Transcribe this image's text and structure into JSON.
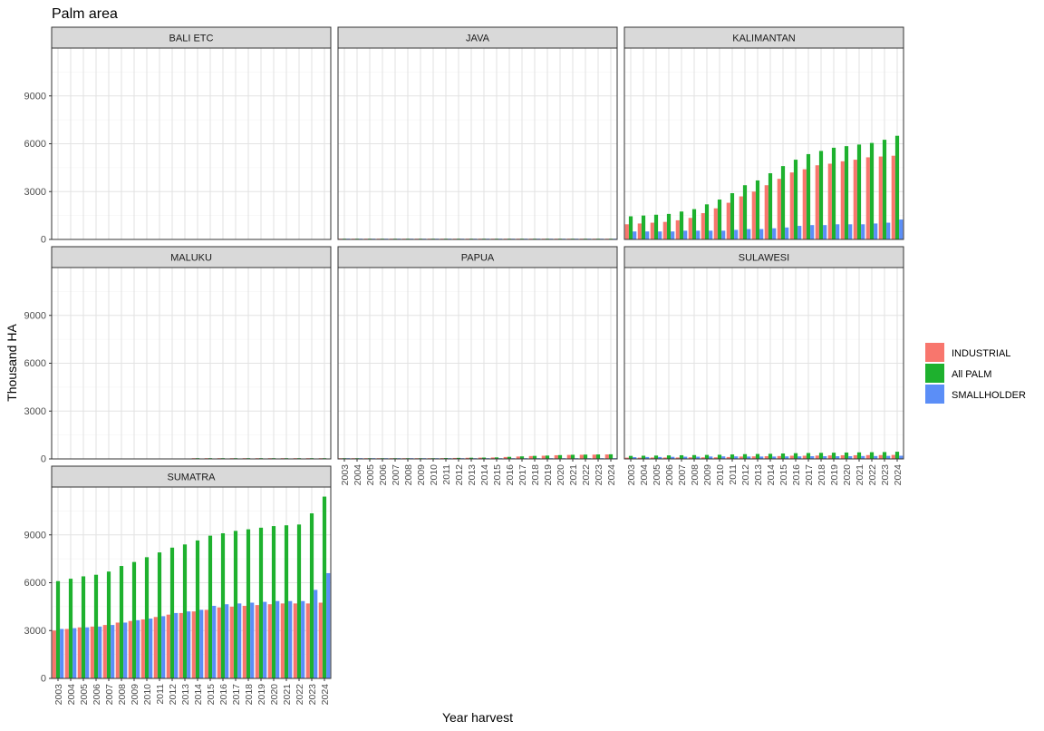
{
  "chart_data": {
    "type": "bar",
    "title": "Palm area",
    "xlabel": "Year harvest",
    "ylabel": "Thousand HA",
    "ylim": [
      0,
      12000
    ],
    "yticks": [
      0,
      3000,
      6000,
      9000
    ],
    "ytick_labels": [
      "0",
      "3000",
      "6000",
      "9000"
    ],
    "grid": true,
    "legend_position": "right",
    "colors": {
      "INDUSTRIAL": "#F8766D",
      "All PALM": "#1EB12E",
      "SMALLHOLDER": "#5B8EF7"
    },
    "categories": [
      "2003",
      "2004",
      "2005",
      "2006",
      "2007",
      "2008",
      "2009",
      "2010",
      "2011",
      "2012",
      "2013",
      "2014",
      "2015",
      "2016",
      "2017",
      "2018",
      "2019",
      "2020",
      "2021",
      "2022",
      "2023",
      "2024"
    ],
    "series_names": [
      "INDUSTRIAL",
      "All PALM",
      "SMALLHOLDER"
    ],
    "panels": [
      {
        "name": "BALI ETC",
        "series": [
          {
            "name": "INDUSTRIAL",
            "values": [
              0,
              0,
              0,
              0,
              0,
              0,
              0,
              0,
              0,
              0,
              0,
              0,
              0,
              0,
              0,
              0,
              0,
              0,
              0,
              0,
              0,
              0
            ]
          },
          {
            "name": "All PALM",
            "values": [
              0,
              0,
              0,
              0,
              0,
              0,
              0,
              0,
              0,
              0,
              0,
              0,
              0,
              0,
              0,
              0,
              0,
              0,
              0,
              0,
              0,
              0
            ]
          },
          {
            "name": "SMALLHOLDER",
            "values": [
              0,
              0,
              0,
              0,
              0,
              0,
              0,
              0,
              0,
              0,
              0,
              0,
              0,
              0,
              0,
              0,
              0,
              0,
              0,
              0,
              0,
              0
            ]
          }
        ]
      },
      {
        "name": "JAVA",
        "series": [
          {
            "name": "INDUSTRIAL",
            "values": [
              25,
              25,
              25,
              25,
              25,
              25,
              25,
              25,
              25,
              25,
              25,
              25,
              25,
              25,
              25,
              25,
              25,
              25,
              25,
              25,
              25,
              25
            ]
          },
          {
            "name": "All PALM",
            "values": [
              30,
              30,
              30,
              30,
              30,
              30,
              30,
              30,
              30,
              30,
              30,
              30,
              30,
              30,
              30,
              30,
              30,
              30,
              30,
              30,
              30,
              30
            ]
          },
          {
            "name": "SMALLHOLDER",
            "values": [
              5,
              5,
              5,
              5,
              5,
              5,
              5,
              5,
              5,
              5,
              5,
              5,
              5,
              5,
              5,
              5,
              5,
              5,
              5,
              5,
              5,
              5
            ]
          }
        ]
      },
      {
        "name": "KALIMANTAN",
        "series": [
          {
            "name": "INDUSTRIAL",
            "values": [
              950,
              1000,
              1050,
              1100,
              1200,
              1350,
              1650,
              1950,
              2300,
              2700,
              3000,
              3400,
              3800,
              4200,
              4400,
              4650,
              4750,
              4900,
              5000,
              5150,
              5200,
              5250
            ]
          },
          {
            "name": "All PALM",
            "values": [
              1450,
              1500,
              1550,
              1600,
              1750,
              1900,
              2200,
              2500,
              2900,
              3400,
              3700,
              4150,
              4600,
              5000,
              5350,
              5550,
              5750,
              5850,
              5950,
              6050,
              6250,
              6500
            ]
          },
          {
            "name": "SMALLHOLDER",
            "values": [
              500,
              500,
              500,
              500,
              550,
              550,
              550,
              550,
              600,
              650,
              650,
              700,
              750,
              850,
              900,
              900,
              950,
              950,
              950,
              1000,
              1050,
              1250
            ]
          }
        ]
      },
      {
        "name": "MALUKU",
        "series": [
          {
            "name": "INDUSTRIAL",
            "values": [
              0,
              0,
              0,
              0,
              0,
              0,
              0,
              0,
              0,
              0,
              0,
              5,
              5,
              5,
              5,
              5,
              5,
              5,
              5,
              5,
              5,
              5
            ]
          },
          {
            "name": "All PALM",
            "values": [
              0,
              0,
              0,
              0,
              0,
              0,
              0,
              0,
              0,
              0,
              0,
              10,
              10,
              10,
              10,
              10,
              10,
              10,
              10,
              10,
              10,
              10
            ]
          },
          {
            "name": "SMALLHOLDER",
            "values": [
              0,
              0,
              0,
              0,
              0,
              0,
              0,
              0,
              0,
              0,
              0,
              0,
              0,
              0,
              0,
              0,
              0,
              0,
              0,
              0,
              0,
              0
            ]
          }
        ]
      },
      {
        "name": "PAPUA",
        "series": [
          {
            "name": "INDUSTRIAL",
            "values": [
              20,
              20,
              20,
              20,
              20,
              20,
              25,
              30,
              50,
              60,
              70,
              80,
              90,
              120,
              150,
              180,
              200,
              230,
              250,
              260,
              270,
              280
            ]
          },
          {
            "name": "All PALM",
            "values": [
              25,
              25,
              25,
              25,
              25,
              25,
              30,
              35,
              55,
              65,
              75,
              85,
              95,
              130,
              160,
              190,
              210,
              240,
              260,
              270,
              280,
              290
            ]
          },
          {
            "name": "SMALLHOLDER",
            "values": [
              5,
              5,
              5,
              5,
              5,
              5,
              5,
              5,
              5,
              5,
              5,
              5,
              5,
              10,
              10,
              10,
              10,
              10,
              10,
              10,
              10,
              10
            ]
          }
        ]
      },
      {
        "name": "SULAWESI",
        "series": [
          {
            "name": "INDUSTRIAL",
            "values": [
              80,
              80,
              90,
              90,
              90,
              100,
              100,
              100,
              120,
              150,
              160,
              170,
              180,
              200,
              200,
              210,
              220,
              230,
              230,
              240,
              240,
              250
            ]
          },
          {
            "name": "All PALM",
            "values": [
              190,
              200,
              210,
              220,
              230,
              240,
              250,
              260,
              280,
              300,
              310,
              320,
              340,
              360,
              370,
              380,
              390,
              400,
              410,
              420,
              430,
              450
            ]
          },
          {
            "name": "SMALLHOLDER",
            "values": [
              110,
              120,
              120,
              130,
              140,
              140,
              150,
              160,
              160,
              150,
              150,
              150,
              160,
              160,
              170,
              170,
              170,
              170,
              180,
              180,
              190,
              200
            ]
          }
        ]
      },
      {
        "name": "SUMATRA",
        "series": [
          {
            "name": "INDUSTRIAL",
            "values": [
              3000,
              3100,
              3200,
              3250,
              3350,
              3500,
              3600,
              3700,
              3850,
              4000,
              4100,
              4200,
              4300,
              4450,
              4500,
              4550,
              4600,
              4650,
              4700,
              4700,
              4700,
              4750
            ]
          },
          {
            "name": "All PALM",
            "values": [
              6100,
              6250,
              6400,
              6500,
              6700,
              7050,
              7300,
              7600,
              7900,
              8200,
              8400,
              8650,
              8950,
              9100,
              9250,
              9350,
              9450,
              9550,
              9600,
              9650,
              10350,
              11400
            ]
          },
          {
            "name": "SMALLHOLDER",
            "values": [
              3100,
              3150,
              3200,
              3250,
              3350,
              3500,
              3650,
              3750,
              3900,
              4100,
              4200,
              4300,
              4550,
              4650,
              4700,
              4750,
              4800,
              4850,
              4850,
              4850,
              5550,
              6600
            ]
          }
        ]
      }
    ]
  }
}
